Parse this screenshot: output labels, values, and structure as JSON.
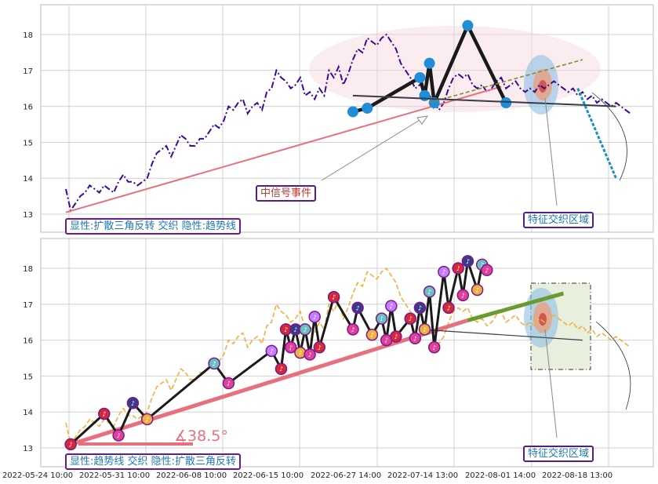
{
  "chart_data": {
    "type": "line",
    "x_ticks": [
      "2022-05-24 10:00",
      "2022-05-31 10:00",
      "2022-06-08 10:00",
      "2022-06-15 10:00",
      "2022-06-27 14:00",
      "2022-07-14 13:00",
      "2022-08-01 14:00",
      "2022-08-18 13:00"
    ],
    "y_ticks": [
      13,
      14,
      15,
      16,
      17,
      18
    ],
    "grid": true,
    "panels": [
      {
        "ylim": [
          12.5,
          18.9
        ],
        "series": [
          {
            "style": "dashdot",
            "color": "#3d0a91",
            "x": [
              0,
              1,
              2,
              3,
              4,
              5,
              6,
              7,
              8,
              9,
              10,
              11,
              12,
              13,
              14,
              15,
              16,
              17,
              18,
              19,
              20,
              21,
              22,
              23,
              24,
              25,
              26,
              27,
              28,
              29,
              30,
              31,
              32,
              33,
              34,
              35,
              36,
              37,
              38,
              39,
              40,
              41,
              42,
              43,
              44,
              45,
              46,
              47,
              48,
              49,
              50,
              51,
              52,
              53,
              54,
              55,
              56,
              57,
              58,
              59,
              60,
              61,
              62,
              63,
              64,
              65,
              66,
              67,
              68,
              69,
              70,
              71,
              72,
              73,
              74,
              75,
              76,
              77,
              78,
              79,
              80,
              81,
              82,
              83,
              84,
              85,
              86,
              87,
              88,
              89,
              90,
              91,
              92,
              93,
              94,
              95,
              96,
              97,
              98,
              99,
              100,
              101,
              102,
              103,
              104,
              105,
              106,
              107,
              108,
              109,
              110,
              111,
              112,
              113,
              114,
              115,
              116,
              117,
              118
            ],
            "y": [
              13.7,
              13.1,
              13.3,
              13.5,
              13.6,
              13.8,
              13.7,
              13.6,
              13.8,
              13.7,
              13.6,
              13.9,
              14.1,
              13.9,
              13.9,
              13.8,
              13.9,
              14.0,
              14.4,
              14.7,
              14.8,
              14.9,
              14.6,
              14.9,
              15.2,
              15.1,
              14.9,
              14.9,
              15.1,
              15.1,
              15.3,
              15.5,
              15.4,
              15.6,
              16.0,
              15.9,
              16.1,
              16.2,
              15.8,
              16.0,
              16.1,
              15.9,
              16.4,
              16.5,
              17.0,
              16.8,
              16.7,
              16.5,
              16.6,
              16.8,
              16.3,
              16.4,
              16.2,
              16.5,
              16.3,
              17.0,
              16.8,
              17.1,
              16.6,
              16.9,
              17.3,
              17.6,
              17.5,
              17.9,
              17.8,
              17.7,
              17.9,
              18.0,
              17.8,
              17.6,
              17.2,
              17.0,
              16.8,
              16.5,
              16.6,
              16.5,
              16.3,
              16.1,
              15.9,
              16.1,
              16.5,
              16.8,
              16.9,
              16.8,
              16.9,
              16.6,
              16.5,
              16.6,
              16.4,
              16.5,
              16.7,
              16.8,
              16.5,
              16.6,
              16.7,
              16.5,
              16.4,
              16.5,
              16.4,
              16.6,
              16.5,
              16.6,
              16.7,
              16.6,
              16.5,
              16.4,
              16.5,
              16.3,
              16.4,
              16.2,
              16.3,
              16.1,
              16.2,
              16.1,
              16.0,
              16.1,
              16.0,
              15.9,
              15.8
            ]
          },
          {
            "style": "trend",
            "color": "#e8707e",
            "x": [
              0,
              91
            ],
            "y": [
              13.05,
              16.55
            ]
          },
          {
            "style": "pattern",
            "color": "#1a1a1a",
            "x": [
              60,
              63,
              74,
              75,
              76,
              77,
              84,
              92
            ],
            "y": [
              15.85,
              15.95,
              16.8,
              16.3,
              17.2,
              16.1,
              18.25,
              16.1
            ]
          },
          {
            "style": "resistance",
            "color": "#7d8c32",
            "x": [
              76,
              108
            ],
            "y": [
              16.1,
              17.3
            ]
          },
          {
            "style": "support",
            "color": "#3a3a4a",
            "x": [
              60,
              115
            ],
            "y": [
              16.3,
              16.0
            ]
          },
          {
            "style": "projection",
            "color": "#1e90c0",
            "x": [
              107,
              115
            ],
            "y": [
              16.5,
              14.0
            ]
          }
        ],
        "legend_text": "显性:扩散三角反转 交织 隐性:趋势线"
      },
      {
        "ylim": [
          12.5,
          18.9
        ],
        "series": [
          {
            "style": "dashed",
            "color": "#f0b040",
            "x": [
              0,
              1,
              2,
              3,
              4,
              5,
              6,
              7,
              8,
              9,
              10,
              11,
              12,
              13,
              14,
              15,
              16,
              17,
              18,
              19,
              20,
              21,
              22,
              23,
              24,
              25,
              26,
              27,
              28,
              29,
              30,
              31,
              32,
              33,
              34,
              35,
              36,
              37,
              38,
              39,
              40,
              41,
              42,
              43,
              44,
              45,
              46,
              47,
              48,
              49,
              50,
              51,
              52,
              53,
              54,
              55,
              56,
              57,
              58,
              59,
              60,
              61,
              62,
              63,
              64,
              65,
              66,
              67,
              68,
              69,
              70,
              71,
              72,
              73,
              74,
              75,
              76,
              77,
              78,
              79,
              80,
              81,
              82,
              83,
              84,
              85,
              86,
              87,
              88,
              89,
              90,
              91,
              92,
              93,
              94,
              95,
              96,
              97,
              98,
              99,
              100,
              101,
              102,
              103,
              104,
              105,
              106,
              107,
              108,
              109,
              110,
              111,
              112,
              113,
              114,
              115,
              116,
              117,
              118
            ],
            "y": [
              13.7,
              13.1,
              13.3,
              13.5,
              13.6,
              13.8,
              13.7,
              13.6,
              13.8,
              13.7,
              13.6,
              13.9,
              14.1,
              13.9,
              13.9,
              13.8,
              13.9,
              14.0,
              14.4,
              14.7,
              14.8,
              14.9,
              14.6,
              14.9,
              15.2,
              15.1,
              14.9,
              14.9,
              15.1,
              15.1,
              15.3,
              15.5,
              15.4,
              15.6,
              16.0,
              15.9,
              16.1,
              16.2,
              15.8,
              16.0,
              16.1,
              15.9,
              16.4,
              16.5,
              17.0,
              16.8,
              16.7,
              16.5,
              16.6,
              16.8,
              16.3,
              16.4,
              16.2,
              16.5,
              16.3,
              17.0,
              16.8,
              17.1,
              16.6,
              16.9,
              17.3,
              17.6,
              17.5,
              17.9,
              17.8,
              17.7,
              17.9,
              18.0,
              17.8,
              17.6,
              17.2,
              17.0,
              16.8,
              16.5,
              16.6,
              16.5,
              16.3,
              16.1,
              15.9,
              16.1,
              16.5,
              16.8,
              16.9,
              16.8,
              16.9,
              16.6,
              16.5,
              16.6,
              16.4,
              16.5,
              16.7,
              16.8,
              16.5,
              16.6,
              16.7,
              16.5,
              16.4,
              16.5,
              16.4,
              16.6,
              16.5,
              16.6,
              16.7,
              16.6,
              16.5,
              16.4,
              16.5,
              16.3,
              16.4,
              16.2,
              16.3,
              16.1,
              16.2,
              16.1,
              16.0,
              16.1,
              16.0,
              15.9,
              15.8
            ]
          },
          {
            "style": "trend",
            "color": "#e8707e",
            "x": [
              1,
              84
            ],
            "y": [
              13.1,
              16.55
            ]
          },
          {
            "style": "resistance",
            "color": "#6a9a30",
            "x": [
              84,
              104
            ],
            "y": [
              16.55,
              17.3
            ]
          },
          {
            "style": "support",
            "color": "#3a3a4a",
            "x": [
              74,
              108
            ],
            "y": [
              16.3,
              16.0
            ]
          },
          {
            "style": "zigzag",
            "color": "#1a1a1a",
            "x": [
              1,
              8,
              11,
              14,
              17,
              31,
              34,
              43,
              45,
              46,
              47,
              48,
              49,
              50,
              51,
              52,
              53,
              56,
              60,
              61,
              64,
              66,
              67,
              68,
              69,
              72,
              73,
              74,
              75,
              76,
              77,
              79,
              80,
              82,
              83,
              84,
              86,
              87,
              88
            ],
            "y": [
              13.1,
              13.95,
              13.35,
              14.25,
              13.8,
              15.35,
              14.8,
              15.7,
              15.2,
              16.3,
              15.8,
              16.3,
              15.65,
              16.3,
              15.6,
              16.65,
              15.8,
              17.2,
              16.3,
              16.9,
              16.15,
              16.6,
              16.0,
              16.95,
              16.1,
              16.6,
              16.05,
              16.9,
              16.3,
              17.35,
              15.8,
              17.9,
              16.9,
              18.0,
              17.25,
              18.2,
              17.4,
              18.1,
              17.95
            ]
          }
        ],
        "angle_label": "∡38.5°",
        "legend_text": "显性:趋势线 交织 隐性:扩散三角反转"
      }
    ],
    "annotations": {
      "signal_event": "中信号事件",
      "feature_zone": "特征交织区域"
    }
  }
}
